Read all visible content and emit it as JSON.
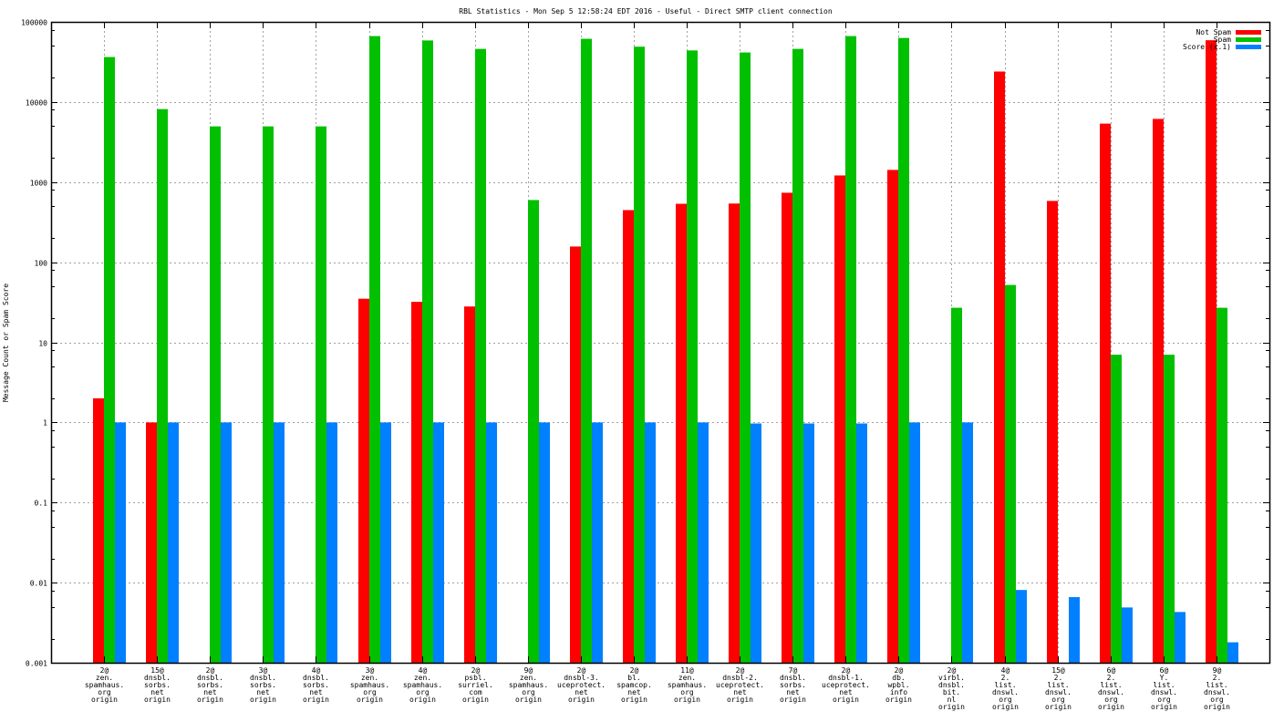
{
  "chart_data": {
    "type": "bar",
    "title": "RBL Statistics - Mon Sep  5 12:58:24 EDT 2016 - Useful - Direct SMTP client connection",
    "xlabel": "",
    "ylabel": "Message Count or Spam Score",
    "yscale": "log",
    "ylim": [
      0.001,
      100000
    ],
    "xlim": [
      0,
      23
    ],
    "grid": true,
    "legend_position": "top-right",
    "ytick_labels": [
      "0.001",
      "0.01",
      "0.1",
      "1",
      "10",
      "100",
      "1000",
      "10000",
      "100000"
    ],
    "categories": [
      [
        "2@",
        "zen.",
        "spamhaus.",
        "org",
        "origin"
      ],
      [
        "15@",
        "dnsbl.",
        "sorbs.",
        "net",
        "origin"
      ],
      [
        "2@",
        "dnsbl.",
        "sorbs.",
        "net",
        "origin"
      ],
      [
        "3@",
        "dnsbl.",
        "sorbs.",
        "net",
        "origin"
      ],
      [
        "4@",
        "dnsbl.",
        "sorbs.",
        "net",
        "origin"
      ],
      [
        "3@",
        "zen.",
        "spamhaus.",
        "org",
        "origin"
      ],
      [
        "4@",
        "zen.",
        "spamhaus.",
        "org",
        "origin"
      ],
      [
        "2@",
        "psbl.",
        "surriel.",
        "com",
        "origin"
      ],
      [
        "9@",
        "zen.",
        "spamhaus.",
        "org",
        "origin"
      ],
      [
        "2@",
        "dnsbl-3.",
        "uceprotect.",
        "net",
        "origin"
      ],
      [
        "2@",
        "bl.",
        "spamcop.",
        "net",
        "origin"
      ],
      [
        "11@",
        "zen.",
        "spamhaus.",
        "org",
        "origin"
      ],
      [
        "2@",
        "dnsbl-2.",
        "uceprotect.",
        "net",
        "origin"
      ],
      [
        "7@",
        "dnsbl.",
        "sorbs.",
        "net",
        "origin"
      ],
      [
        "2@",
        "dnsbl-1.",
        "uceprotect.",
        "net",
        "origin"
      ],
      [
        "2@",
        "db.",
        "wpbl.",
        "info",
        "origin"
      ],
      [
        "2@",
        "virbl.",
        "dnsbl.",
        "bit.",
        "nl",
        "origin"
      ],
      [
        "4@",
        "2.",
        "list.",
        "dnswl.",
        "org",
        "origin"
      ],
      [
        "15@",
        "2.",
        "list.",
        "dnswl.",
        "org",
        "origin"
      ],
      [
        "6@",
        "2.",
        "list.",
        "dnswl.",
        "org",
        "origin"
      ],
      [
        "6@",
        "Y.",
        "list.",
        "dnswl.",
        "org",
        "origin"
      ],
      [
        "9@",
        "2.",
        "list.",
        "dnswl.",
        "org",
        "origin"
      ]
    ],
    "series": [
      {
        "name": "Not Spam",
        "color": "#ff0000",
        "values": [
          2,
          1,
          null,
          null,
          null,
          35,
          32,
          28,
          null,
          157,
          447,
          536,
          540,
          736,
          1210,
          1420,
          null,
          24000,
          582,
          5370,
          6150,
          59000
        ]
      },
      {
        "name": "Spam",
        "color": "#00c000",
        "values": [
          36400,
          8150,
          4960,
          4960,
          4960,
          66500,
          58600,
          46000,
          597,
          61500,
          49000,
          44000,
          41500,
          46000,
          66500,
          63000,
          27,
          52,
          null,
          7,
          7,
          27
        ]
      },
      {
        "name": "Score (x.1)",
        "color": "#0080ff",
        "values": [
          1,
          1,
          1,
          1,
          1,
          1,
          1,
          1,
          1,
          1,
          1,
          1,
          0.97,
          0.97,
          0.97,
          1,
          1,
          0.0081,
          0.0066,
          0.0049,
          0.0043,
          0.0018
        ]
      }
    ]
  }
}
